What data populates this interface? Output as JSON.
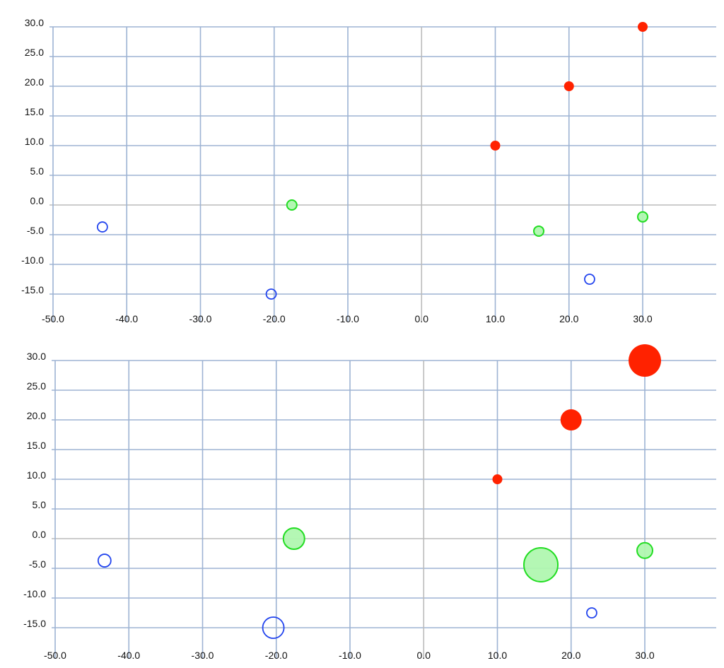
{
  "chart_data": [
    {
      "type": "scatter",
      "title": "",
      "xlabel": "",
      "ylabel": "",
      "xlim": [
        -50,
        40
      ],
      "ylim": [
        -15,
        30
      ],
      "grid": true,
      "legend": null,
      "x_ticks": [
        -50,
        -40,
        -30,
        -20,
        -10,
        0,
        10,
        20,
        30
      ],
      "x_tick_labels": [
        "-50.0",
        "-40.0",
        "-30.0",
        "-20.0",
        "-10.0",
        "0.0",
        "10.0",
        "20.0",
        "30.0"
      ],
      "y_ticks": [
        30,
        25,
        20,
        15,
        10,
        5,
        0,
        -5,
        -10,
        -15
      ],
      "y_tick_labels": [
        "30.0",
        "25.0",
        "20.0",
        "15.0",
        "10.0",
        "5.0",
        "0.0",
        "-5.0",
        "-10.0",
        "-15.0"
      ],
      "series": [
        {
          "name": "red",
          "style": "filled",
          "color": "#ff2200",
          "points": [
            {
              "x": 10,
              "y": 10,
              "r": 7
            },
            {
              "x": 20,
              "y": 20,
              "r": 7
            },
            {
              "x": 30,
              "y": 30,
              "r": 7
            }
          ]
        },
        {
          "name": "green",
          "style": "translucent",
          "color": "#22dd22",
          "fill": "#b0f7b0",
          "points": [
            {
              "x": -17.6,
              "y": 0,
              "r": 7
            },
            {
              "x": 15.9,
              "y": -4.4,
              "r": 7
            },
            {
              "x": 30,
              "y": -2,
              "r": 7
            }
          ]
        },
        {
          "name": "blue",
          "style": "hollow",
          "color": "#2244ee",
          "points": [
            {
              "x": -43.3,
              "y": -3.7,
              "r": 7
            },
            {
              "x": -20.4,
              "y": -15,
              "r": 7
            },
            {
              "x": 22.8,
              "y": -12.5,
              "r": 7
            }
          ]
        }
      ]
    },
    {
      "type": "scatter",
      "subtype": "bubble",
      "title": "",
      "xlabel": "",
      "ylabel": "",
      "xlim": [
        -50,
        40
      ],
      "ylim": [
        -15,
        30
      ],
      "grid": true,
      "legend": null,
      "x_ticks": [
        -50,
        -40,
        -30,
        -20,
        -10,
        0,
        10,
        20,
        30
      ],
      "x_tick_labels": [
        "-50.0",
        "-40.0",
        "-30.0",
        "-20.0",
        "-10.0",
        "0.0",
        "10.0",
        "20.0",
        "30.0"
      ],
      "y_ticks": [
        30,
        25,
        20,
        15,
        10,
        5,
        0,
        -5,
        -10,
        -15
      ],
      "y_tick_labels": [
        "30.0",
        "25.0",
        "20.0",
        "15.0",
        "10.0",
        "5.0",
        "0.0",
        "-5.0",
        "-10.0",
        "-15.0"
      ],
      "series": [
        {
          "name": "red",
          "style": "filled",
          "color": "#ff2200",
          "points": [
            {
              "x": 10,
              "y": 10,
              "r": 7
            },
            {
              "x": 20,
              "y": 20,
              "r": 15
            },
            {
              "x": 30,
              "y": 30,
              "r": 23
            }
          ]
        },
        {
          "name": "green",
          "style": "translucent",
          "color": "#22dd22",
          "fill": "#b0f7b0",
          "points": [
            {
              "x": -17.6,
              "y": 0,
              "r": 15
            },
            {
              "x": 15.9,
              "y": -4.4,
              "r": 24
            },
            {
              "x": 30,
              "y": -2,
              "r": 11
            }
          ]
        },
        {
          "name": "blue",
          "style": "hollow",
          "color": "#2244ee",
          "points": [
            {
              "x": -43.3,
              "y": -3.7,
              "r": 9
            },
            {
              "x": -20.4,
              "y": -15,
              "r": 15
            },
            {
              "x": 22.8,
              "y": -12.5,
              "r": 7
            }
          ]
        }
      ]
    }
  ],
  "colors": {
    "grid": "#9db3d3",
    "zero_axis": "#bbbbbb",
    "text": "#111111",
    "background": "#ffffff"
  }
}
